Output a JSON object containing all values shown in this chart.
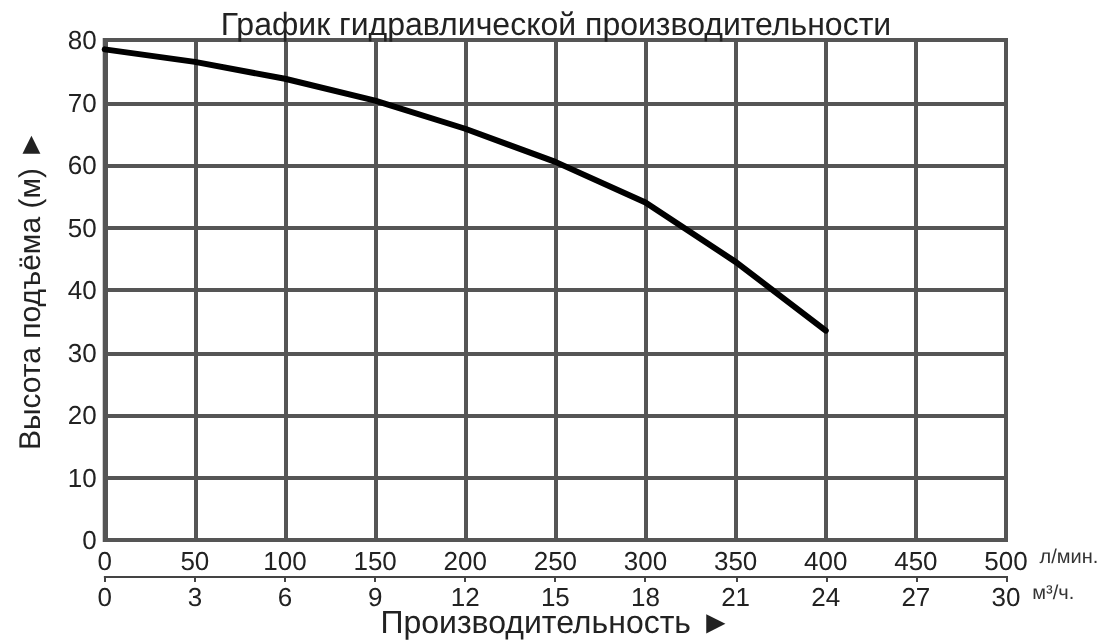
{
  "chart_data": {
    "type": "line",
    "title": "График гидравлической производительности",
    "xlabel": "л/мин.",
    "x2label": "м³/ч.",
    "ylabel": "Высота подъёма (м) ►",
    "annotations": [
      "Производительность ►"
    ],
    "x": [
      0,
      50,
      100,
      150,
      200,
      250,
      300,
      350,
      400
    ],
    "series": [
      {
        "color": "#000000",
        "values": [
          78.5,
          76.5,
          73.8,
          70.3,
          65.8,
          60.5,
          54,
          44.5,
          33.5
        ]
      }
    ],
    "xlim": [
      0,
      500
    ],
    "xticks": [
      0,
      50,
      100,
      150,
      200,
      250,
      300,
      350,
      400,
      450,
      500
    ],
    "x2lim": [
      0,
      30
    ],
    "x2ticks": [
      0,
      3,
      6,
      9,
      12,
      15,
      18,
      21,
      24,
      27,
      30
    ],
    "ylim": [
      0,
      80
    ],
    "yticks": [
      0,
      10,
      20,
      30,
      40,
      50,
      60,
      70,
      80
    ],
    "grid": true,
    "marker": "none",
    "line_style": "solid"
  }
}
